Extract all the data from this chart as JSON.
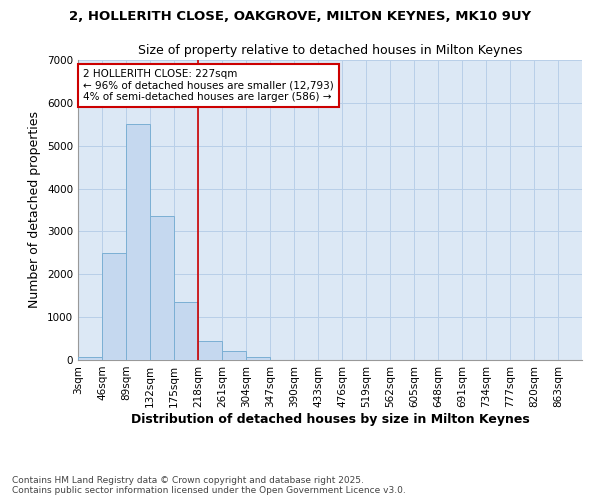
{
  "title_line1": "2, HOLLERITH CLOSE, OAKGROVE, MILTON KEYNES, MK10 9UY",
  "title_line2": "Size of property relative to detached houses in Milton Keynes",
  "xlabel": "Distribution of detached houses by size in Milton Keynes",
  "ylabel": "Number of detached properties",
  "bin_labels": [
    "3sqm",
    "46sqm",
    "89sqm",
    "132sqm",
    "175sqm",
    "218sqm",
    "261sqm",
    "304sqm",
    "347sqm",
    "390sqm",
    "433sqm",
    "476sqm",
    "519sqm",
    "562sqm",
    "605sqm",
    "648sqm",
    "691sqm",
    "734sqm",
    "777sqm",
    "820sqm",
    "863sqm"
  ],
  "bin_edges": [
    3,
    46,
    89,
    132,
    175,
    218,
    261,
    304,
    347,
    390,
    433,
    476,
    519,
    562,
    605,
    648,
    691,
    734,
    777,
    820,
    863
  ],
  "bar_values": [
    80,
    2500,
    5500,
    3350,
    1350,
    450,
    200,
    80,
    10,
    5,
    0,
    0,
    0,
    0,
    0,
    0,
    0,
    0,
    0,
    0
  ],
  "bar_color": "#c5d8ef",
  "bar_edgecolor": "#7bafd4",
  "vline_x": 218,
  "vline_color": "#cc0000",
  "annotation_text": "2 HOLLERITH CLOSE: 227sqm\n← 96% of detached houses are smaller (12,793)\n4% of semi-detached houses are larger (586) →",
  "annotation_box_edgecolor": "#cc0000",
  "ylim": [
    0,
    7000
  ],
  "yticks": [
    0,
    1000,
    2000,
    3000,
    4000,
    5000,
    6000,
    7000
  ],
  "background_color": "#ffffff",
  "plot_bg_color": "#dce8f5",
  "grid_color": "#b8cfe8",
  "footer_text": "Contains HM Land Registry data © Crown copyright and database right 2025.\nContains public sector information licensed under the Open Government Licence v3.0.",
  "title_fontsize": 9.5,
  "subtitle_fontsize": 9,
  "axis_label_fontsize": 9,
  "tick_fontsize": 7.5,
  "annotation_fontsize": 7.5
}
